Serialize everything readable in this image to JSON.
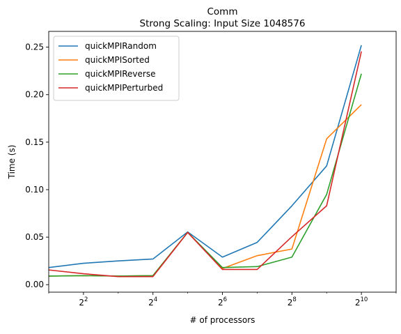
{
  "chart_data": {
    "type": "line",
    "title": "Comm",
    "subtitle": "Strong Scaling: Input Size 1048576",
    "xlabel": "# of processors",
    "ylabel": "Time (s)",
    "x_scale": "log2",
    "x": [
      2,
      4,
      8,
      16,
      32,
      64,
      128,
      256,
      512,
      1024
    ],
    "xticks": [
      {
        "value": 4,
        "base": "2",
        "exp": "2"
      },
      {
        "value": 16,
        "base": "2",
        "exp": "4"
      },
      {
        "value": 64,
        "base": "2",
        "exp": "6"
      },
      {
        "value": 256,
        "base": "2",
        "exp": "8"
      },
      {
        "value": 1024,
        "base": "2",
        "exp": "10"
      }
    ],
    "yticks": [
      "0.00",
      "0.05",
      "0.10",
      "0.15",
      "0.20",
      "0.25"
    ],
    "ylim": [
      -0.0079,
      0.2666
    ],
    "legend_position": "top-left",
    "grid": false,
    "series": [
      {
        "name": "quickMPIRandom",
        "color": "#1f77b4",
        "values": [
          0.018,
          0.0225,
          0.025,
          0.027,
          0.0555,
          0.029,
          0.0445,
          0.083,
          0.125,
          0.252
        ]
      },
      {
        "name": "quickMPISorted",
        "color": "#ff7f0e",
        "values": [
          0.009,
          0.0095,
          0.009,
          0.0095,
          0.055,
          0.017,
          0.0305,
          0.0375,
          0.1535,
          0.1895
        ]
      },
      {
        "name": "quickMPIReverse",
        "color": "#2ca02c",
        "values": [
          0.009,
          0.0095,
          0.009,
          0.0095,
          0.055,
          0.018,
          0.019,
          0.029,
          0.095,
          0.222
        ]
      },
      {
        "name": "quickMPIPerturbed",
        "color": "#d62728",
        "values": [
          0.0155,
          0.0115,
          0.0085,
          0.0085,
          0.055,
          0.016,
          0.016,
          0.0505,
          0.083,
          0.2455
        ]
      }
    ]
  }
}
